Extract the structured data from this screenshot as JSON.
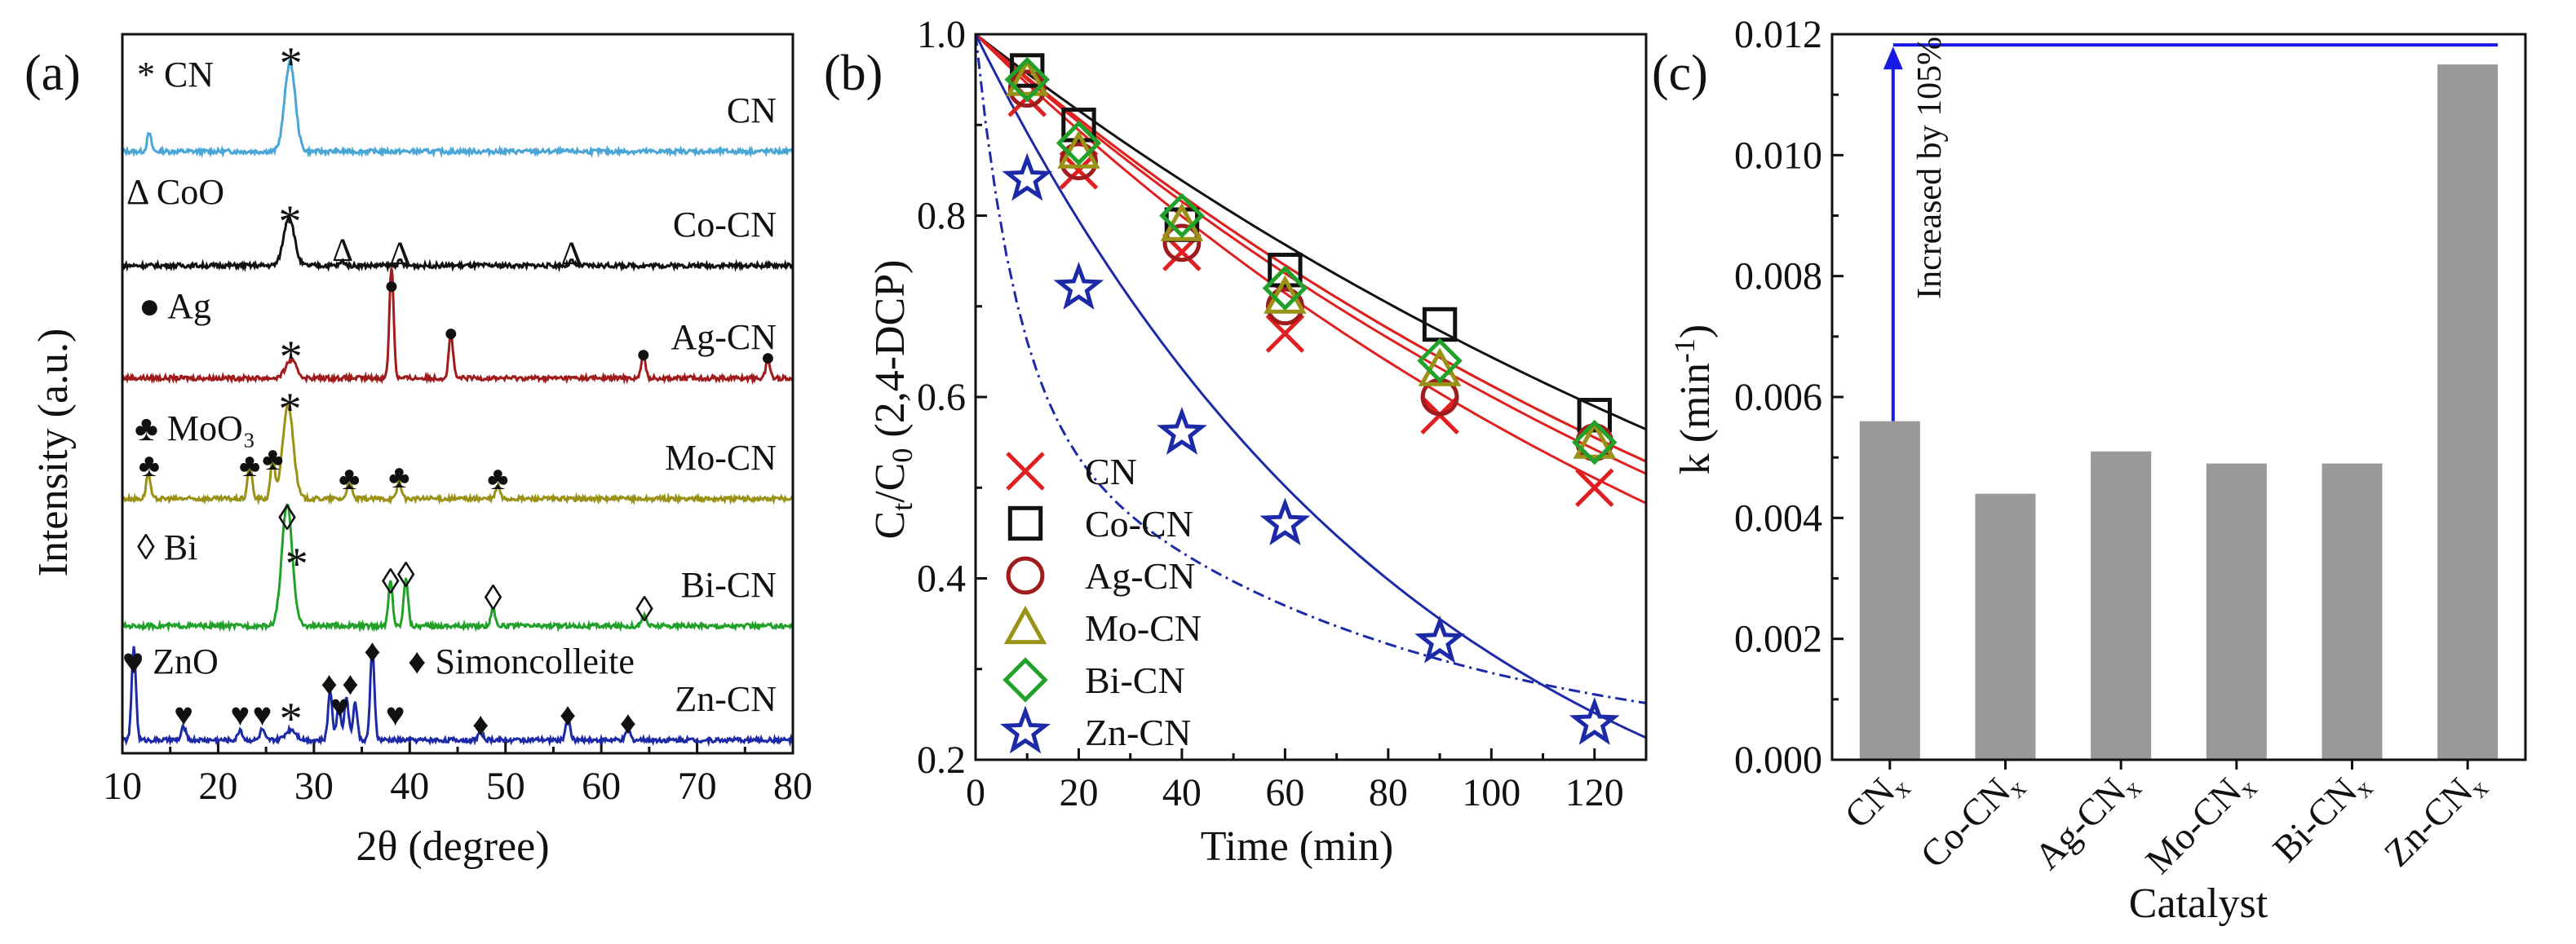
{
  "panels": {
    "a": {
      "label": "(a)"
    },
    "b": {
      "label": "(b)"
    },
    "c": {
      "label": "(c)"
    }
  },
  "chart_data": [
    {
      "type": "line",
      "panel": "(a)",
      "xlabel": "2θ (degree)",
      "ylabel": "Intensity (a.u.)",
      "xlim": [
        10,
        80
      ],
      "xticks": [
        "10",
        "20",
        "30",
        "40",
        "50",
        "60",
        "70",
        "80"
      ],
      "colors": {
        "CN": "#4aa6d6",
        "Co-CN": "#111111",
        "Ag-CN": "#a01c1c",
        "Mo-CN": "#9a9216",
        "Bi-CN": "#22a12a",
        "Zn-CN": "#1c2aa8"
      },
      "series": [
        {
          "name": "CN",
          "peaks": [
            {
              "x": 12.8,
              "h": 0.2
            },
            {
              "x": 27.5,
              "h": 1.0
            }
          ]
        },
        {
          "name": "Co-CN",
          "peaks": [
            {
              "x": 27.4,
              "h": 0.55
            },
            {
              "x": 33.0,
              "h": 0.05
            },
            {
              "x": 39.0,
              "h": 0.05
            },
            {
              "x": 56.9,
              "h": 0.05
            }
          ]
        },
        {
          "name": "Ag-CN",
          "peaks": [
            {
              "x": 27.6,
              "h": 0.2
            },
            {
              "x": 38.1,
              "h": 1.25
            },
            {
              "x": 44.3,
              "h": 0.5
            },
            {
              "x": 64.4,
              "h": 0.25
            },
            {
              "x": 77.4,
              "h": 0.2
            }
          ]
        },
        {
          "name": "Mo-CN",
          "peaks": [
            {
              "x": 12.7,
              "h": 0.28
            },
            {
              "x": 23.3,
              "h": 0.42
            },
            {
              "x": 25.7,
              "h": 0.48
            },
            {
              "x": 27.3,
              "h": 1.05
            },
            {
              "x": 33.7,
              "h": 0.25
            },
            {
              "x": 38.9,
              "h": 0.2
            },
            {
              "x": 49.2,
              "h": 0.15
            }
          ]
        },
        {
          "name": "Bi-CN",
          "peaks": [
            {
              "x": 27.2,
              "h": 1.35
            },
            {
              "x": 38.0,
              "h": 0.5
            },
            {
              "x": 39.6,
              "h": 0.55
            },
            {
              "x": 48.7,
              "h": 0.2
            },
            {
              "x": 64.5,
              "h": 0.12
            }
          ]
        },
        {
          "name": "Zn-CN",
          "peaks": [
            {
              "x": 11.2,
              "h": 1.05
            },
            {
              "x": 16.4,
              "h": 0.15
            },
            {
              "x": 22.3,
              "h": 0.12
            },
            {
              "x": 24.6,
              "h": 0.12
            },
            {
              "x": 27.6,
              "h": 0.12
            },
            {
              "x": 31.7,
              "h": 0.55
            },
            {
              "x": 32.6,
              "h": 0.4
            },
            {
              "x": 33.4,
              "h": 0.48
            },
            {
              "x": 34.3,
              "h": 0.42
            },
            {
              "x": 36.1,
              "h": 1.0
            },
            {
              "x": 47.4,
              "h": 0.1
            },
            {
              "x": 56.5,
              "h": 0.25
            },
            {
              "x": 62.8,
              "h": 0.12
            }
          ]
        }
      ],
      "legend_text": [
        "* CN",
        "Δ CoO",
        "● Ag",
        "♣ MoO₃",
        "◊ Bi",
        "♥ ZnO",
        "♦ Simoncolleite"
      ]
    },
    {
      "type": "scatter",
      "panel": "(b)",
      "xlabel": "Time (min)",
      "ylabel": "Ct/C0 (2,4-DCP)",
      "xlim": [
        0,
        130
      ],
      "ylim": [
        0.2,
        1.0
      ],
      "xticks": [
        "0",
        "20",
        "40",
        "60",
        "80",
        "100",
        "120"
      ],
      "yticks": [
        "0.2",
        "0.4",
        "0.6",
        "0.8",
        "1.0"
      ],
      "x": [
        0,
        10,
        20,
        40,
        60,
        90,
        120
      ],
      "series": [
        {
          "name": "CN",
          "marker": "cross",
          "color": "#e02020",
          "values": [
            1.0,
            0.93,
            0.85,
            0.76,
            0.67,
            0.58,
            0.5
          ],
          "k": 0.0056
        },
        {
          "name": "Co-CN",
          "marker": "square",
          "color": "#111111",
          "values": [
            1.0,
            0.96,
            0.9,
            0.79,
            0.74,
            0.68,
            0.58
          ],
          "k": 0.0044
        },
        {
          "name": "Ag-CN",
          "marker": "circle",
          "color": "#a01c1c",
          "values": [
            1.0,
            0.94,
            0.86,
            0.77,
            0.7,
            0.6,
            0.55
          ],
          "k": 0.0051
        },
        {
          "name": "Mo-CN",
          "marker": "triangle",
          "color": "#9a9216",
          "values": [
            1.0,
            0.95,
            0.87,
            0.79,
            0.71,
            0.63,
            0.55
          ],
          "k": 0.0049
        },
        {
          "name": "Bi-CN",
          "marker": "diamond",
          "color": "#22a12a",
          "values": [
            1.0,
            0.95,
            0.88,
            0.8,
            0.72,
            0.64,
            0.55
          ],
          "k": 0.0049
        },
        {
          "name": "Zn-CN",
          "marker": "star",
          "color": "#1c2aa8",
          "values": [
            1.0,
            0.84,
            0.72,
            0.56,
            0.46,
            0.33,
            0.24
          ],
          "k": 0.0115
        }
      ]
    },
    {
      "type": "bar",
      "panel": "(c)",
      "xlabel": "Catalyst",
      "ylabel": "k (min-1)",
      "ylim": [
        0,
        0.012
      ],
      "yticks": [
        "0.000",
        "0.002",
        "0.004",
        "0.006",
        "0.008",
        "0.010",
        "0.012"
      ],
      "categories": [
        "CNx",
        "Co-CNx",
        "Ag-CNx",
        "Mo-CNx",
        "Bi-CNx",
        "Zn-CNx"
      ],
      "values": [
        0.0056,
        0.0044,
        0.0051,
        0.0049,
        0.0049,
        0.0115
      ],
      "bar_color": "#999999",
      "annotation": {
        "text": "Increased by 105%",
        "color": "#1a1ae6",
        "from": "CNx",
        "to": "Zn-CNx"
      }
    }
  ]
}
